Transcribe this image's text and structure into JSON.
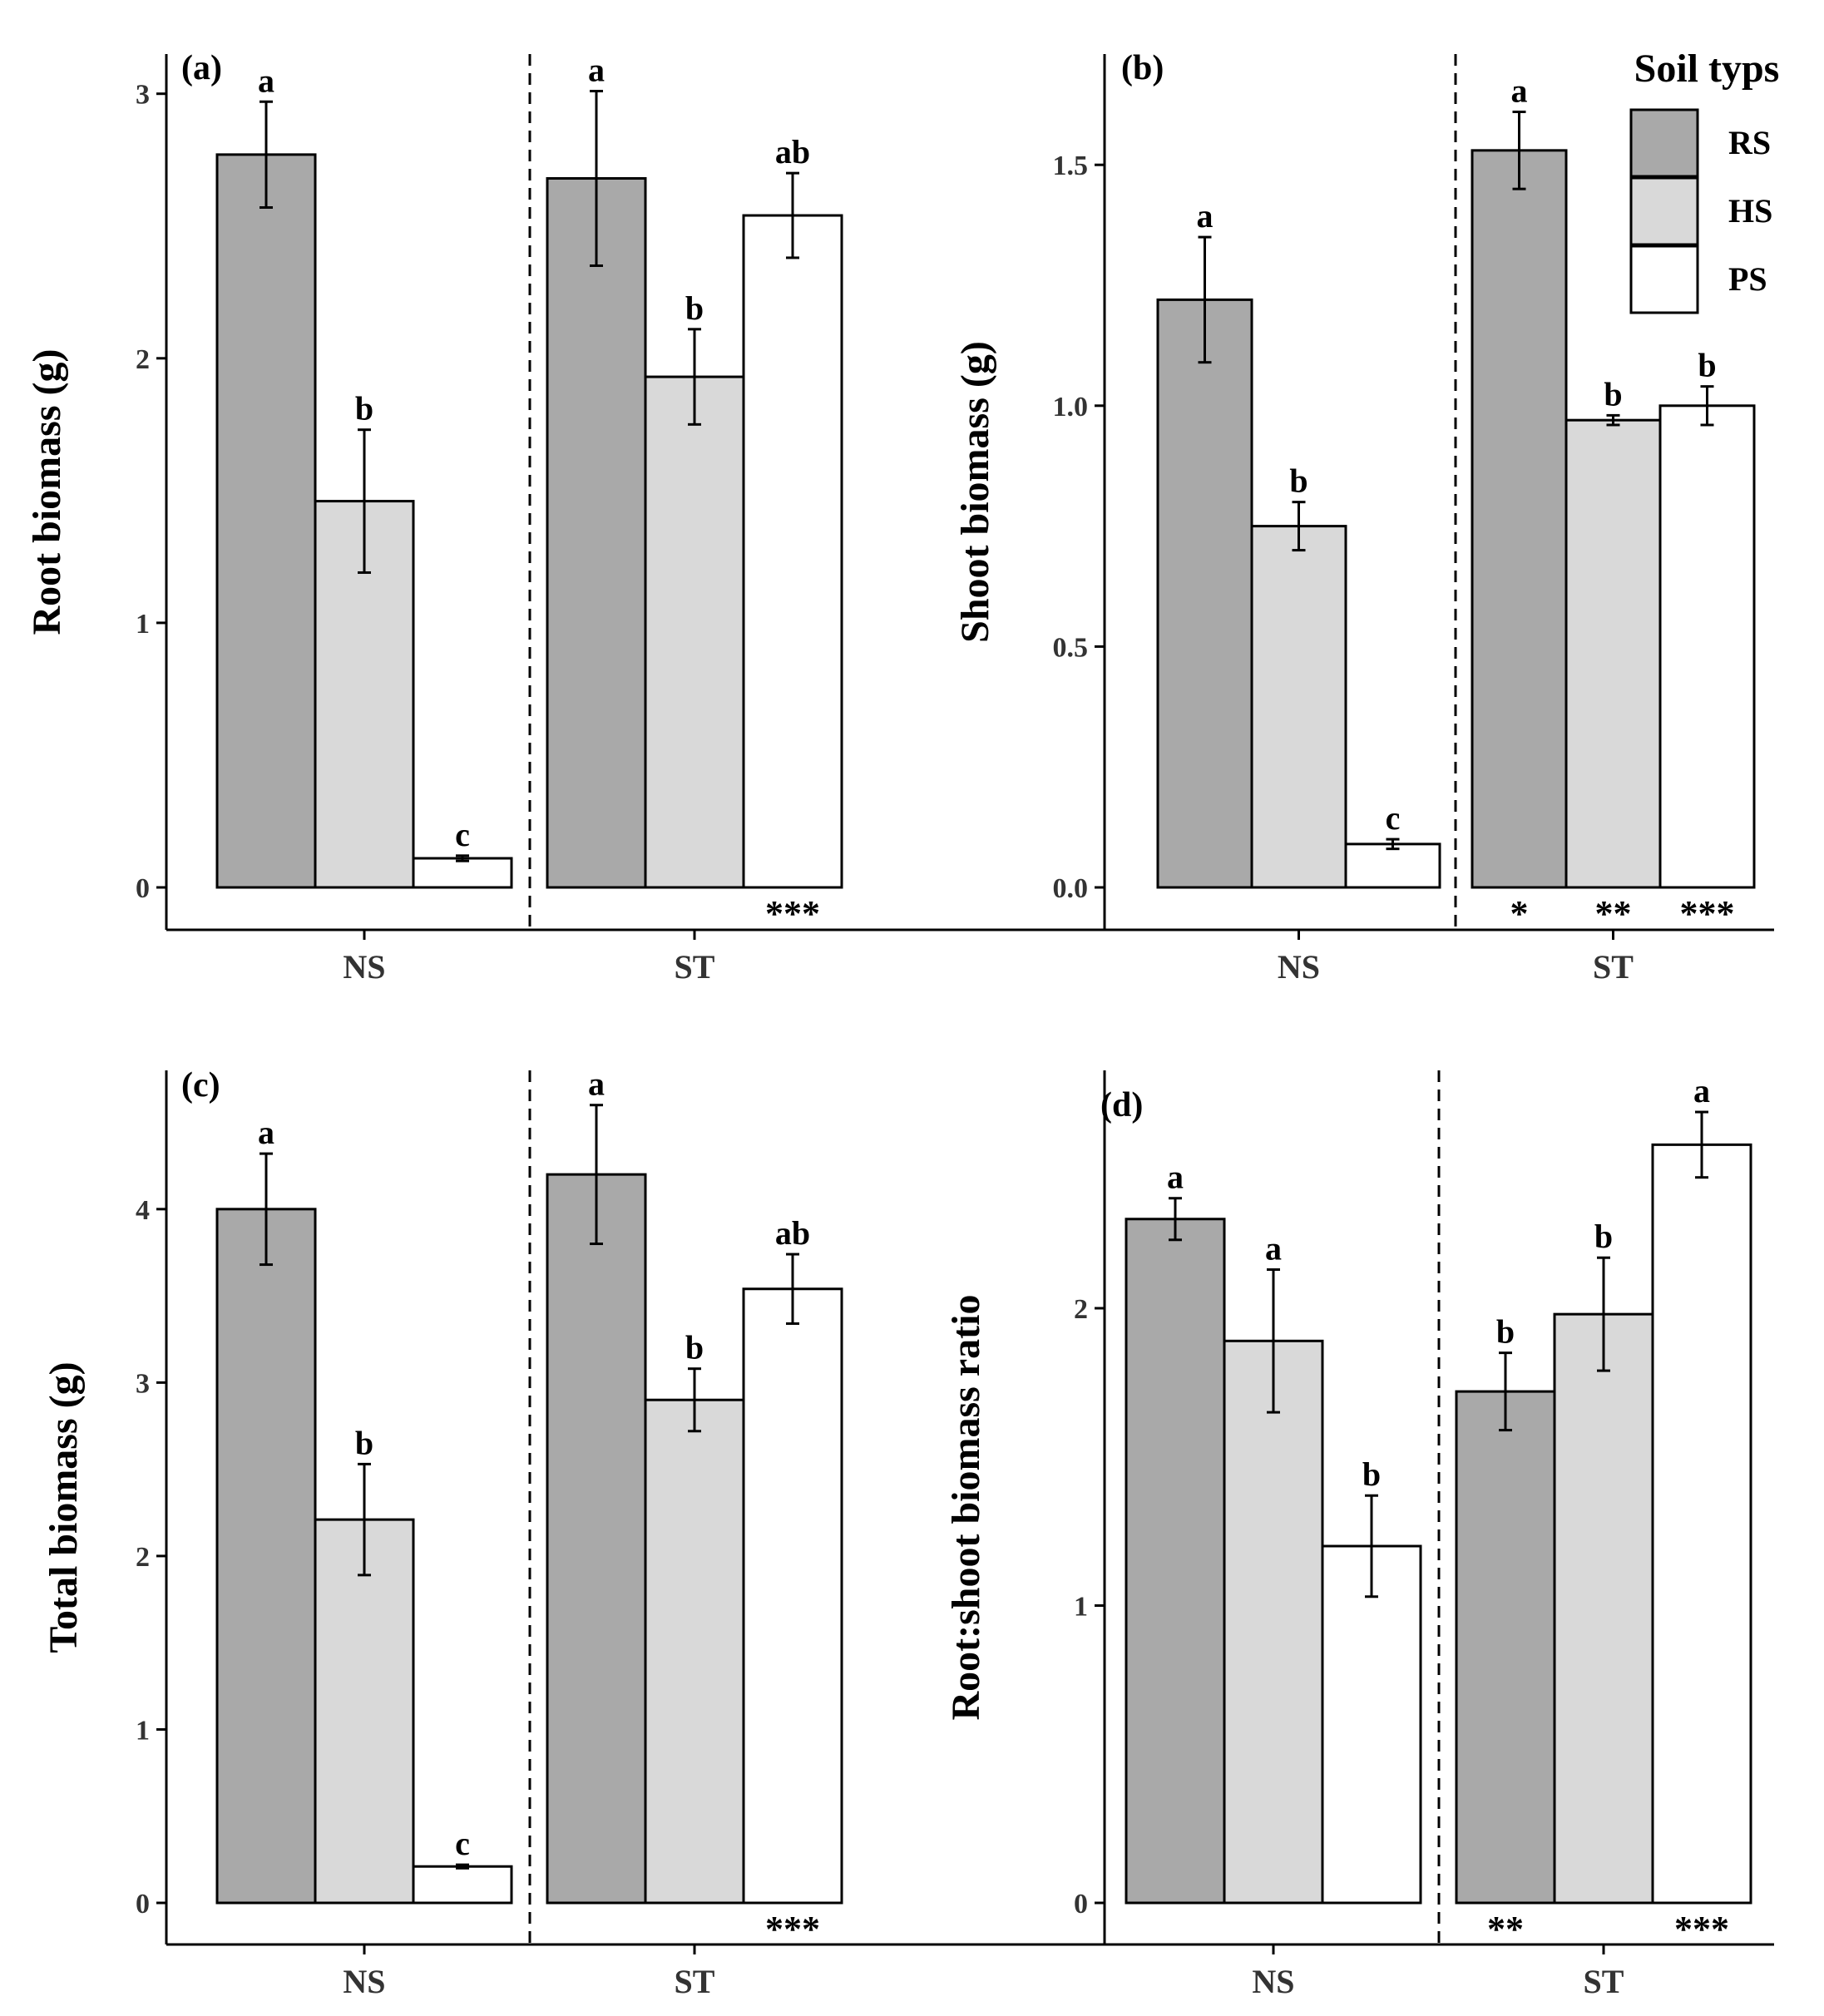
{
  "legend": {
    "title": "Soil typs",
    "items": [
      {
        "label": "RS",
        "color": "#a9a9a9"
      },
      {
        "label": "HS",
        "color": "#d9d9d9"
      },
      {
        "label": "PS",
        "color": "#ffffff"
      }
    ]
  },
  "chart_data": [
    {
      "type": "bar",
      "panel": "(a)",
      "ylabel": "Root biomass (g)",
      "ylim": [
        0,
        3.15
      ],
      "yticks": [
        0,
        1,
        2,
        3
      ],
      "ytick_labels": [
        "0",
        "1",
        "2",
        "3"
      ],
      "categories": [
        "NS",
        "ST"
      ],
      "series": [
        {
          "name": "RS",
          "values": [
            2.77,
            2.68
          ],
          "errors": [
            0.2,
            0.33
          ],
          "letters": [
            "a",
            "a"
          ],
          "stars": [
            "",
            ""
          ]
        },
        {
          "name": "HS",
          "values": [
            1.46,
            1.93
          ],
          "errors": [
            0.27,
            0.18
          ],
          "letters": [
            "b",
            "b"
          ],
          "stars": [
            "",
            ""
          ]
        },
        {
          "name": "PS",
          "values": [
            0.11,
            2.54
          ],
          "errors": [
            0.01,
            0.16
          ],
          "letters": [
            "c",
            "ab"
          ],
          "stars": [
            "",
            "***"
          ]
        }
      ]
    },
    {
      "type": "bar",
      "panel": "(b)",
      "ylabel": "Shoot biomass (g)",
      "ylim": [
        0,
        1.73
      ],
      "yticks": [
        0,
        0.5,
        1.0,
        1.5
      ],
      "ytick_labels": [
        "0.0",
        "0.5",
        "1.0",
        "1.5"
      ],
      "categories": [
        "NS",
        "ST"
      ],
      "series": [
        {
          "name": "RS",
          "values": [
            1.22,
            1.53
          ],
          "errors": [
            0.13,
            0.08
          ],
          "letters": [
            "a",
            "a"
          ],
          "stars": [
            "",
            "*"
          ]
        },
        {
          "name": "HS",
          "values": [
            0.75,
            0.97
          ],
          "errors": [
            0.05,
            0.01
          ],
          "letters": [
            "b",
            "b"
          ],
          "stars": [
            "",
            "**"
          ]
        },
        {
          "name": "PS",
          "values": [
            0.09,
            1.0
          ],
          "errors": [
            0.01,
            0.04
          ],
          "letters": [
            "c",
            "b"
          ],
          "stars": [
            "",
            "***"
          ]
        }
      ]
    },
    {
      "type": "bar",
      "panel": "(c)",
      "ylabel": "Total biomass (g)",
      "ylim": [
        0,
        4.8
      ],
      "yticks": [
        0,
        1,
        2,
        3,
        4
      ],
      "ytick_labels": [
        "0",
        "1",
        "2",
        "3",
        "4"
      ],
      "categories": [
        "NS",
        "ST"
      ],
      "series": [
        {
          "name": "RS",
          "values": [
            4.0,
            4.2
          ],
          "errors": [
            0.32,
            0.4
          ],
          "letters": [
            "a",
            "a"
          ],
          "stars": [
            "",
            ""
          ]
        },
        {
          "name": "HS",
          "values": [
            2.21,
            2.9
          ],
          "errors": [
            0.32,
            0.18
          ],
          "letters": [
            "b",
            "b"
          ],
          "stars": [
            "",
            ""
          ]
        },
        {
          "name": "PS",
          "values": [
            0.21,
            3.54
          ],
          "errors": [
            0.01,
            0.2
          ],
          "letters": [
            "c",
            "ab"
          ],
          "stars": [
            "",
            "***"
          ]
        }
      ]
    },
    {
      "type": "bar",
      "panel": "(d)",
      "ylabel": "Root:shoot biomass ratio",
      "ylim": [
        0,
        2.8
      ],
      "yticks": [
        0,
        1,
        2
      ],
      "ytick_labels": [
        "0",
        "1",
        "2"
      ],
      "categories": [
        "NS",
        "ST"
      ],
      "series": [
        {
          "name": "RS",
          "values": [
            2.3,
            1.72
          ],
          "errors": [
            0.07,
            0.13
          ],
          "letters": [
            "a",
            "b"
          ],
          "stars": [
            "",
            "**"
          ]
        },
        {
          "name": "HS",
          "values": [
            1.89,
            1.98
          ],
          "errors": [
            0.24,
            0.19
          ],
          "letters": [
            "a",
            "b"
          ],
          "stars": [
            "",
            ""
          ]
        },
        {
          "name": "PS",
          "values": [
            1.2,
            2.55
          ],
          "errors": [
            0.17,
            0.11
          ],
          "letters": [
            "b",
            "a"
          ],
          "stars": [
            "",
            "***"
          ]
        }
      ]
    }
  ]
}
